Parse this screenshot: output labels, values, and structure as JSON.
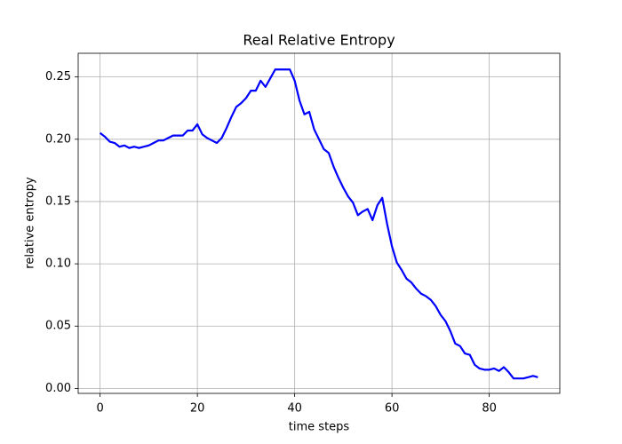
{
  "chart_data": {
    "type": "line",
    "title": "Real Relative Entropy",
    "x_label": "time steps",
    "y_label": "relative entropy",
    "x": [
      0,
      1,
      2,
      3,
      4,
      5,
      6,
      7,
      8,
      9,
      10,
      11,
      12,
      13,
      14,
      15,
      16,
      17,
      18,
      19,
      20,
      21,
      22,
      23,
      24,
      25,
      26,
      27,
      28,
      29,
      30,
      31,
      32,
      33,
      34,
      35,
      36,
      37,
      38,
      39,
      40,
      41,
      42,
      43,
      44,
      45,
      46,
      47,
      48,
      49,
      50,
      51,
      52,
      53,
      54,
      55,
      56,
      57,
      58,
      59,
      60,
      61,
      62,
      63,
      64,
      65,
      66,
      67,
      68,
      69,
      70,
      71,
      72,
      73,
      74,
      75,
      76,
      77,
      78,
      79,
      80,
      81,
      82,
      83,
      84,
      85,
      86,
      87,
      88,
      89,
      90
    ],
    "series": [
      {
        "color": "#0000ff",
        "values": [
          0.205,
          0.202,
          0.198,
          0.197,
          0.194,
          0.195,
          0.193,
          0.194,
          0.193,
          0.194,
          0.195,
          0.197,
          0.199,
          0.199,
          0.201,
          0.203,
          0.203,
          0.203,
          0.207,
          0.207,
          0.212,
          0.204,
          0.201,
          0.199,
          0.197,
          0.201,
          0.209,
          0.218,
          0.226,
          0.229,
          0.233,
          0.239,
          0.239,
          0.247,
          0.242,
          0.249,
          0.256,
          0.256,
          0.256,
          0.256,
          0.247,
          0.231,
          0.22,
          0.222,
          0.208,
          0.2,
          0.192,
          0.189,
          0.178,
          0.169,
          0.161,
          0.154,
          0.149,
          0.139,
          0.142,
          0.144,
          0.135,
          0.147,
          0.153,
          0.132,
          0.114,
          0.101,
          0.095,
          0.088,
          0.085,
          0.08,
          0.076,
          0.074,
          0.071,
          0.066,
          0.059,
          0.054,
          0.046,
          0.036,
          0.034,
          0.028,
          0.027,
          0.019,
          0.016,
          0.015,
          0.015,
          0.016,
          0.014,
          0.017,
          0.013,
          0.008,
          0.008,
          0.008,
          0.009,
          0.01,
          0.009
        ]
      }
    ],
    "xlim": [
      -4.5,
      94.5
    ],
    "ylim": [
      -0.004,
      0.269
    ],
    "xticks": [
      0,
      20,
      40,
      60,
      80
    ],
    "yticks": [
      {
        "value": 0,
        "label": "0.00"
      },
      {
        "value": 0.05,
        "label": "0.05"
      },
      {
        "value": 0.1,
        "label": "0.10"
      },
      {
        "value": 0.15,
        "label": "0.15"
      },
      {
        "value": 0.2,
        "label": "0.20"
      },
      {
        "value": 0.25,
        "label": "0.25"
      }
    ],
    "grid": true
  }
}
